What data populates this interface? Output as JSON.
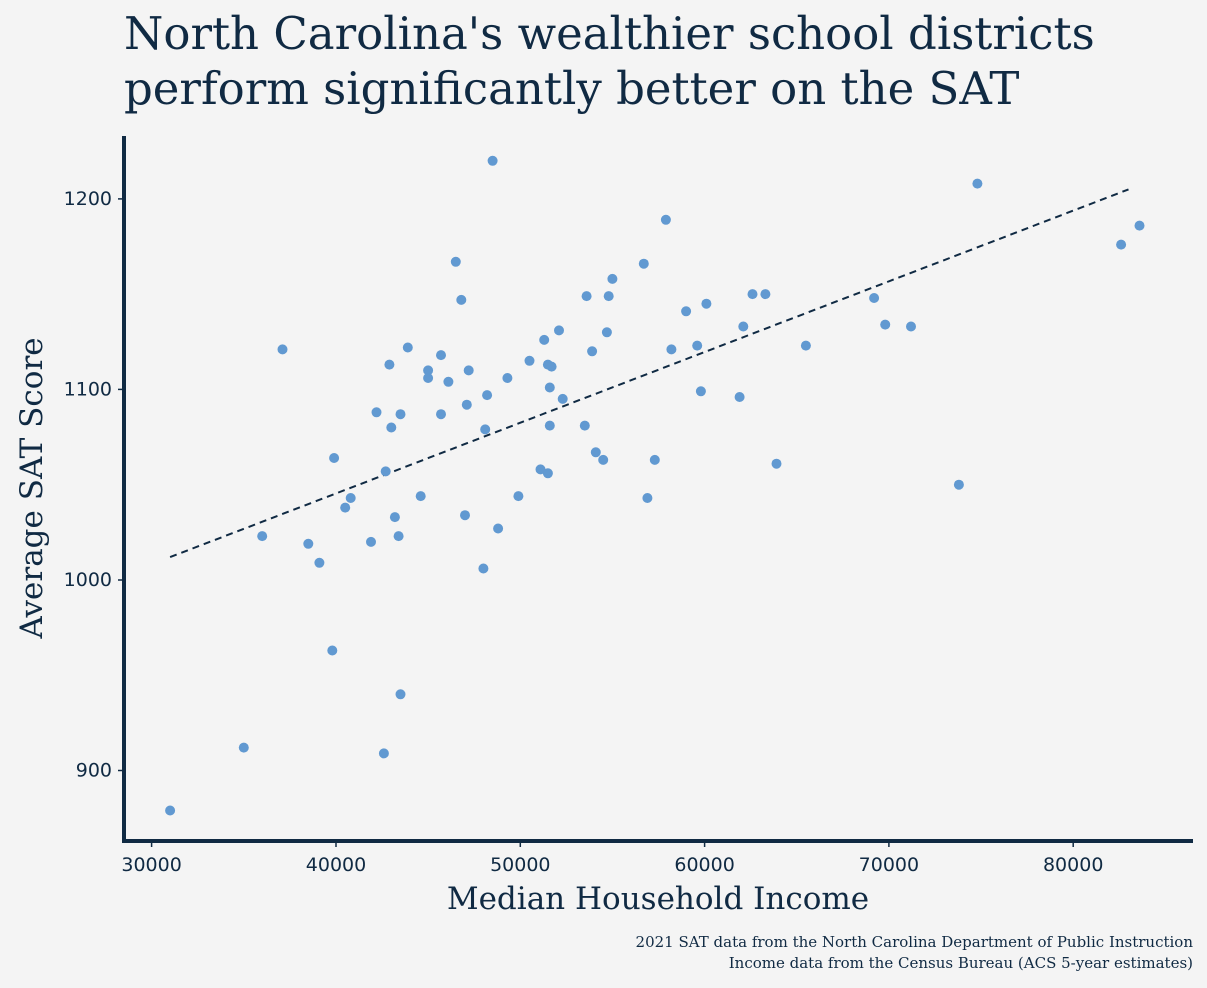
{
  "title_lines": [
    "North Carolina's wealthier school districts",
    "perform significantly better on the SAT"
  ],
  "caption_lines": [
    "2021 SAT data from the North Carolina Department of Public Instruction",
    "Income data from the Census Bureau (ACS 5-year estimates)"
  ],
  "colors": {
    "background": "#f4f4f4",
    "points": "#6199d1",
    "text": "#102a43",
    "axis": "#102a43",
    "trend_line": "#102a43"
  },
  "chart_data": {
    "type": "scatter",
    "title": "North Carolina's wealthier school districts perform significantly better on the SAT",
    "xlabel": "Median Household Income",
    "ylabel": "Average SAT Score",
    "xlim": [
      28500,
      86500
    ],
    "ylim": [
      863,
      1233
    ],
    "xticks": [
      30000,
      40000,
      50000,
      60000,
      70000,
      80000
    ],
    "yticks": [
      900,
      1000,
      1100,
      1200
    ],
    "grid": false,
    "legend": "none",
    "trend_line": {
      "style": "dashed",
      "x": [
        31000,
        83000
      ],
      "y": [
        1012,
        1205
      ]
    },
    "points": [
      [
        31000,
        879
      ],
      [
        35000,
        912
      ],
      [
        36000,
        1023
      ],
      [
        37100,
        1121
      ],
      [
        38500,
        1019
      ],
      [
        39100,
        1009
      ],
      [
        39800,
        963
      ],
      [
        39900,
        1064
      ],
      [
        40500,
        1038
      ],
      [
        40800,
        1043
      ],
      [
        41900,
        1020
      ],
      [
        42200,
        1088
      ],
      [
        42600,
        909
      ],
      [
        42700,
        1057
      ],
      [
        42900,
        1113
      ],
      [
        43000,
        1080
      ],
      [
        43200,
        1033
      ],
      [
        43400,
        1023
      ],
      [
        43500,
        1087
      ],
      [
        43500,
        940
      ],
      [
        43900,
        1122
      ],
      [
        44600,
        1044
      ],
      [
        45000,
        1110
      ],
      [
        45000,
        1106
      ],
      [
        45700,
        1118
      ],
      [
        45700,
        1087
      ],
      [
        46100,
        1104
      ],
      [
        46500,
        1167
      ],
      [
        46800,
        1147
      ],
      [
        47000,
        1034
      ],
      [
        47100,
        1092
      ],
      [
        47200,
        1110
      ],
      [
        48000,
        1006
      ],
      [
        48100,
        1079
      ],
      [
        48200,
        1097
      ],
      [
        48500,
        1220
      ],
      [
        48800,
        1027
      ],
      [
        49300,
        1106
      ],
      [
        49900,
        1044
      ],
      [
        50500,
        1115
      ],
      [
        51100,
        1058
      ],
      [
        51300,
        1126
      ],
      [
        51500,
        1113
      ],
      [
        51500,
        1056
      ],
      [
        51600,
        1081
      ],
      [
        51600,
        1101
      ],
      [
        51700,
        1112
      ],
      [
        52100,
        1131
      ],
      [
        52300,
        1095
      ],
      [
        53500,
        1081
      ],
      [
        53600,
        1149
      ],
      [
        53900,
        1120
      ],
      [
        54100,
        1067
      ],
      [
        54500,
        1063
      ],
      [
        54700,
        1130
      ],
      [
        54800,
        1149
      ],
      [
        55000,
        1158
      ],
      [
        56700,
        1166
      ],
      [
        56900,
        1043
      ],
      [
        57300,
        1063
      ],
      [
        57900,
        1189
      ],
      [
        58200,
        1121
      ],
      [
        59000,
        1141
      ],
      [
        59600,
        1123
      ],
      [
        59800,
        1099
      ],
      [
        60100,
        1145
      ],
      [
        61900,
        1096
      ],
      [
        62100,
        1133
      ],
      [
        62600,
        1150
      ],
      [
        63300,
        1150
      ],
      [
        63900,
        1061
      ],
      [
        65500,
        1123
      ],
      [
        69200,
        1148
      ],
      [
        69800,
        1134
      ],
      [
        71200,
        1133
      ],
      [
        73800,
        1050
      ],
      [
        74800,
        1208
      ],
      [
        82600,
        1176
      ],
      [
        83600,
        1186
      ]
    ]
  }
}
